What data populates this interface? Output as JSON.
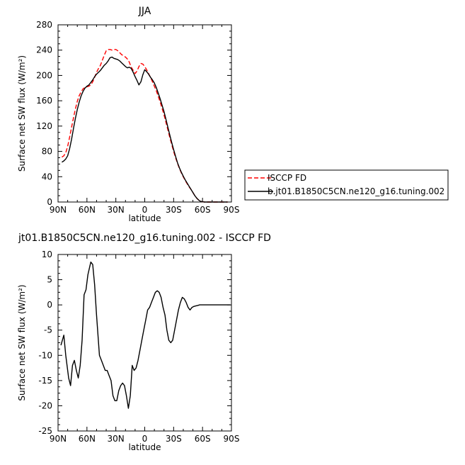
{
  "chart_data": [
    {
      "type": "line",
      "title": "JJA",
      "xlabel": "latitude",
      "ylabel": "Surface net SW flux (W/m²)",
      "xlim": [
        90,
        -90
      ],
      "ylim": [
        0,
        280
      ],
      "yticks": [
        0,
        40,
        80,
        120,
        160,
        200,
        240,
        280
      ],
      "xticks": [
        90,
        60,
        30,
        0,
        -30,
        -60,
        -90
      ],
      "xtick_labels": [
        "90N",
        "60N",
        "30N",
        "0",
        "30S",
        "60S",
        "90S"
      ],
      "legend_position": "right",
      "series": [
        {
          "name": "ISCCP FD",
          "color": "#ff0000",
          "dash": "dashed",
          "x": [
            86,
            84,
            82,
            80,
            78,
            76,
            74,
            72,
            70,
            68,
            66,
            64,
            62,
            60,
            58,
            56,
            54,
            52,
            50,
            48,
            46,
            44,
            42,
            40,
            38,
            36,
            34,
            32,
            30,
            28,
            26,
            24,
            22,
            20,
            18,
            16,
            14,
            12,
            10,
            8,
            6,
            4,
            2,
            0,
            -2,
            -4,
            -6,
            -8,
            -10,
            -12,
            -14,
            -16,
            -18,
            -20,
            -22,
            -24,
            -26,
            -28,
            -30,
            -32,
            -34,
            -36,
            -38,
            -40,
            -42,
            -44,
            -46,
            -48,
            -50,
            -52,
            -54,
            -56,
            -58,
            -60,
            -62,
            -64,
            -66,
            -68,
            -70,
            -72,
            -74,
            -76,
            -78,
            -80,
            -82,
            -84,
            -86
          ],
          "y": [
            71,
            73,
            78,
            88,
            102,
            118,
            133,
            147,
            159,
            168,
            174,
            179,
            181,
            182,
            183,
            185,
            190,
            197,
            205,
            211,
            216,
            224,
            232,
            239,
            241,
            241,
            240,
            241,
            241,
            239,
            236,
            233,
            231,
            229,
            226,
            221,
            213,
            208,
            203,
            207,
            214,
            219,
            218,
            214,
            209,
            203,
            197,
            190,
            183,
            176,
            167,
            158,
            148,
            138,
            126,
            114,
            102,
            91,
            80,
            70,
            61,
            53,
            46,
            40,
            34,
            29,
            24,
            20,
            15,
            10,
            6,
            3,
            1,
            0.5,
            0,
            0,
            0,
            0,
            0,
            0,
            0,
            0,
            0,
            0,
            0,
            0,
            0
          ]
        },
        {
          "name": "b.jt01.B1850C5CN.ne120_g16.tuning.002",
          "color": "#000000",
          "dash": "solid",
          "x": [
            86,
            84,
            82,
            80,
            78,
            76,
            74,
            72,
            70,
            68,
            66,
            64,
            62,
            60,
            58,
            56,
            54,
            52,
            50,
            48,
            46,
            44,
            42,
            40,
            38,
            36,
            34,
            32,
            30,
            28,
            26,
            24,
            22,
            20,
            18,
            16,
            14,
            12,
            10,
            8,
            6,
            4,
            2,
            0,
            -2,
            -4,
            -6,
            -8,
            -10,
            -12,
            -14,
            -16,
            -18,
            -20,
            -22,
            -24,
            -26,
            -28,
            -30,
            -32,
            -34,
            -36,
            -38,
            -40,
            -42,
            -44,
            -46,
            -48,
            -50,
            -52,
            -54,
            -56,
            -58,
            -60,
            -62,
            -64,
            -66,
            -68,
            -70,
            -72,
            -74,
            -76,
            -78,
            -80,
            -82,
            -84,
            -86
          ],
          "y": [
            63,
            65,
            68,
            73,
            84,
            99,
            116,
            132,
            146,
            158,
            168,
            175,
            180,
            183,
            185,
            189,
            193,
            198,
            202,
            205,
            208,
            212,
            216,
            219,
            223,
            228,
            229,
            227,
            226,
            225,
            223,
            220,
            217,
            214,
            212,
            213,
            211,
            205,
            198,
            192,
            185,
            190,
            201,
            209,
            206,
            202,
            197,
            193,
            188,
            181,
            172,
            163,
            153,
            143,
            131,
            118,
            106,
            94,
            83,
            72,
            62,
            54,
            47,
            41,
            35,
            30,
            25,
            20,
            15,
            10,
            6,
            3,
            1,
            0.5,
            0,
            0,
            0,
            0,
            0,
            0,
            0,
            0,
            0,
            0,
            0,
            0,
            0
          ]
        }
      ]
    },
    {
      "type": "line",
      "title": "jt01.B1850C5CN.ne120_g16.tuning.002 - ISCCP FD",
      "xlabel": "latitude",
      "ylabel": "Surface net SW flux (W/m²)",
      "xlim": [
        90,
        -90
      ],
      "ylim": [
        -25,
        10
      ],
      "yticks": [
        -25,
        -20,
        -15,
        -10,
        -5,
        0,
        5,
        10
      ],
      "xticks": [
        90,
        60,
        30,
        0,
        -30,
        -60,
        -90
      ],
      "xtick_labels": [
        "90N",
        "60N",
        "30N",
        "0",
        "30S",
        "60S",
        "90S"
      ],
      "series": [
        {
          "name": "",
          "color": "#000000",
          "dash": "solid",
          "x": [
            87,
            84,
            82,
            79,
            77,
            75,
            73,
            71,
            69,
            67,
            65,
            63,
            61,
            59,
            56,
            54,
            52,
            50,
            47,
            45,
            43,
            41,
            39,
            37,
            35,
            33,
            31,
            29,
            27,
            25,
            23,
            21,
            19,
            17,
            15,
            13,
            11,
            9,
            7,
            5,
            3,
            1,
            -1,
            -3,
            -5,
            -7,
            -9,
            -11,
            -13,
            -15,
            -17,
            -19,
            -21,
            -23,
            -25,
            -27,
            -29,
            -31,
            -33,
            -35,
            -37,
            -39,
            -41,
            -43,
            -45,
            -47,
            -49,
            -51,
            -53,
            -55,
            -57,
            -59,
            -61,
            -63,
            -65,
            -67,
            -69,
            -71,
            -73,
            -75,
            -77,
            -79,
            -81,
            -83,
            -85,
            -87,
            -89
          ],
          "y": [
            -8,
            -6,
            -10,
            -14.5,
            -16,
            -12,
            -11,
            -13,
            -14.5,
            -12,
            -7,
            2,
            3,
            6,
            8.5,
            8,
            4,
            -2,
            -10,
            -11,
            -12,
            -13,
            -13,
            -14,
            -15,
            -18,
            -19,
            -19,
            -17,
            -16,
            -15.5,
            -16,
            -18,
            -20.5,
            -18,
            -12,
            -13,
            -12.5,
            -11,
            -9,
            -7,
            -5,
            -3,
            -1,
            -0.5,
            0.5,
            1.5,
            2.5,
            2.8,
            2.5,
            1.5,
            -0.5,
            -2,
            -5,
            -7,
            -7.5,
            -7,
            -5,
            -3,
            -1,
            0.5,
            1.5,
            1.2,
            0.5,
            -0.5,
            -1,
            -0.5,
            -0.3,
            -0.2,
            -0.1,
            0,
            0,
            0,
            0,
            0,
            0,
            0,
            0,
            0,
            0,
            0,
            0,
            0,
            0,
            0,
            0,
            0
          ]
        }
      ]
    }
  ]
}
